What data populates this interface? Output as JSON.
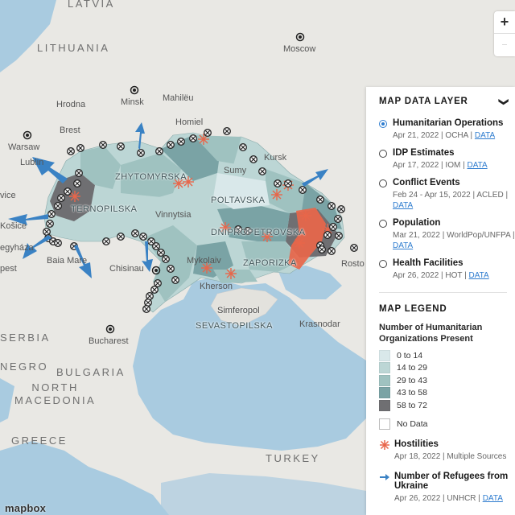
{
  "map": {
    "countries": [
      {
        "id": "latvia",
        "label": "LATVIA"
      },
      {
        "id": "lithuania",
        "label": "LITHUANIA"
      },
      {
        "id": "bulgaria",
        "label": "BULGARIA"
      },
      {
        "id": "north-macedonia",
        "label": "NORTH\nMACEDONIA"
      },
      {
        "id": "greece",
        "label": "GREECE"
      },
      {
        "id": "turkey",
        "label": "TURKEY"
      },
      {
        "id": "negro",
        "label": "NEGRO"
      },
      {
        "id": "serbia",
        "label": "SERBIA"
      }
    ],
    "cities": [
      {
        "id": "moscow",
        "label": "Moscow"
      },
      {
        "id": "minsk",
        "label": "Minsk"
      },
      {
        "id": "mahileu",
        "label": "Mahilëu"
      },
      {
        "id": "hrodna",
        "label": "Hrodna"
      },
      {
        "id": "brest",
        "label": "Brest"
      },
      {
        "id": "homiel",
        "label": "Homiel"
      },
      {
        "id": "warsaw",
        "label": "Warsaw"
      },
      {
        "id": "lublin",
        "label": "Lublin"
      },
      {
        "id": "kursk",
        "label": "Kursk"
      },
      {
        "id": "sumy",
        "label": "Sumy"
      },
      {
        "id": "vinnytsia",
        "label": "Vinnytsia"
      },
      {
        "id": "kosice",
        "label": "Košice"
      },
      {
        "id": "vice",
        "label": "vice"
      },
      {
        "id": "egyhaza",
        "label": "egyháza"
      },
      {
        "id": "pest",
        "label": "pest"
      },
      {
        "id": "baia-mare",
        "label": "Baia Mare"
      },
      {
        "id": "chisinau",
        "label": "Chisinau"
      },
      {
        "id": "mykolaiv",
        "label": "Mykolaiv"
      },
      {
        "id": "kherson",
        "label": "Kherson"
      },
      {
        "id": "simferopol",
        "label": "Simferopol"
      },
      {
        "id": "krasnodar",
        "label": "Krasnodar"
      },
      {
        "id": "rosto",
        "label": "Rosto"
      },
      {
        "id": "bucharest",
        "label": "Bucharest"
      }
    ],
    "oblasts": [
      {
        "id": "zhytomyrska",
        "label": "ZHYTOMYRSKA"
      },
      {
        "id": "ternopilska",
        "label": "TERNOPILSKA"
      },
      {
        "id": "poltavska",
        "label": "POLTAVSKA"
      },
      {
        "id": "dnipropetrovska",
        "label": "DNIPROPETROVSKA"
      },
      {
        "id": "zaporizka",
        "label": "ZAPORIZKA"
      },
      {
        "id": "sevastopilska",
        "label": "SEVASTOPILSKA"
      }
    ],
    "attribution": "mapbox"
  },
  "zoom": {
    "plus": "+",
    "minus": "—"
  },
  "panel": {
    "data_layer_title": "MAP DATA LAYER",
    "layers": [
      {
        "name": "Humanitarian Operations",
        "meta": "Apr 21, 2022 | OCHA | ",
        "link": "DATA",
        "selected": true
      },
      {
        "name": "IDP Estimates",
        "meta": "Apr 17, 2022 | IOM | ",
        "link": "DATA",
        "selected": false
      },
      {
        "name": "Conflict Events",
        "meta": "Feb 24 - Apr 15, 2022 | ACLED | ",
        "link": "DATA",
        "selected": false
      },
      {
        "name": "Population",
        "meta": "Mar 21, 2022 | WorldPop/UNFPA | ",
        "link": "DATA",
        "selected": false
      },
      {
        "name": "Health Facilities",
        "meta": "Apr 26, 2022 | HOT | ",
        "link": "DATA",
        "selected": false
      }
    ],
    "legend_title": "MAP LEGEND",
    "legend_subtitle": "Number of Humanitarian Organizations Present",
    "scale": [
      {
        "label": "0 to 14",
        "color": "#d9e8ea"
      },
      {
        "label": "14 to 29",
        "color": "#bcd6d5"
      },
      {
        "label": "29 to 43",
        "color": "#9fc2c0"
      },
      {
        "label": "43 to 58",
        "color": "#7aa3a5"
      },
      {
        "label": "58 to 72",
        "color": "#6f6f72"
      }
    ],
    "no_data": "No Data",
    "hostilities": {
      "label": "Hostilities",
      "meta": "Apr 18, 2022 | Multiple Sources",
      "color": "#e8664a"
    },
    "refugees": {
      "label": "Number of Refugees from Ukraine",
      "meta": "Apr 26, 2022 | UNHCR | ",
      "link": "DATA",
      "color": "#3a82c4"
    }
  }
}
